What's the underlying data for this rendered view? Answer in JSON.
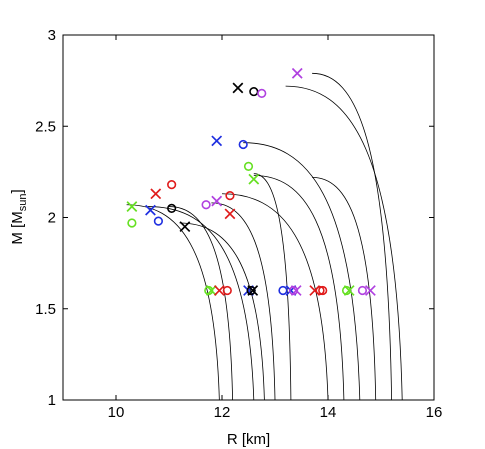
{
  "chart_data": {
    "type": "scatter",
    "xlabel": "R [km]",
    "ylabel": {
      "base": "M [M",
      "sub": "sun",
      "close": "]"
    },
    "xlim": [
      9,
      16
    ],
    "ylim": [
      1,
      3
    ],
    "xticks": [
      10,
      12,
      14,
      16
    ],
    "yticks": [
      1,
      1.5,
      2,
      2.5,
      3
    ],
    "grid": false,
    "legend": "none",
    "colors": {
      "black": "#000000",
      "blue": "#1f2fe0",
      "red": "#e01b1b",
      "green": "#66e022",
      "violet": "#b041e0",
      "curve": "#000000"
    },
    "curves": [
      {
        "r_end": 11.95,
        "r_max": 10.2,
        "m_max": 2.07
      },
      {
        "r_end": 12.6,
        "r_max": 10.6,
        "m_max": 2.06
      },
      {
        "r_end": 12.8,
        "r_max": 11.2,
        "m_max": 1.97
      },
      {
        "r_end": 12.2,
        "r_max": 11.0,
        "m_max": 2.06
      },
      {
        "r_end": 13.0,
        "r_max": 11.8,
        "m_max": 2.08
      },
      {
        "r_end": 13.3,
        "r_max": 12.6,
        "m_max": 2.24
      },
      {
        "r_end": 14.0,
        "r_max": 12.0,
        "m_max": 2.13
      },
      {
        "r_end": 14.3,
        "r_max": 12.6,
        "m_max": 2.23
      },
      {
        "r_end": 14.6,
        "r_max": 12.4,
        "m_max": 2.41
      },
      {
        "r_end": 15.4,
        "r_max": 13.2,
        "m_max": 2.72
      },
      {
        "r_end": 15.2,
        "r_max": 13.7,
        "m_max": 2.79
      },
      {
        "r_end": 14.9,
        "r_max": 13.7,
        "m_max": 2.22
      }
    ],
    "points": [
      {
        "marker": "x",
        "color": "black",
        "x": 12.3,
        "y": 2.71
      },
      {
        "marker": "o",
        "color": "black",
        "x": 12.6,
        "y": 2.69
      },
      {
        "marker": "o",
        "color": "violet",
        "x": 12.75,
        "y": 2.68
      },
      {
        "marker": "x",
        "color": "violet",
        "x": 13.42,
        "y": 2.79
      },
      {
        "marker": "x",
        "color": "blue",
        "x": 11.9,
        "y": 2.42
      },
      {
        "marker": "o",
        "color": "blue",
        "x": 12.4,
        "y": 2.4
      },
      {
        "marker": "o",
        "color": "green",
        "x": 12.5,
        "y": 2.28
      },
      {
        "marker": "x",
        "color": "green",
        "x": 12.6,
        "y": 2.21
      },
      {
        "marker": "x",
        "color": "red",
        "x": 10.75,
        "y": 2.13
      },
      {
        "marker": "o",
        "color": "red",
        "x": 11.05,
        "y": 2.18
      },
      {
        "marker": "x",
        "color": "green",
        "x": 10.3,
        "y": 2.06
      },
      {
        "marker": "o",
        "color": "green",
        "x": 10.3,
        "y": 1.97
      },
      {
        "marker": "x",
        "color": "blue",
        "x": 10.65,
        "y": 2.04
      },
      {
        "marker": "o",
        "color": "blue",
        "x": 10.8,
        "y": 1.98
      },
      {
        "marker": "o",
        "color": "black",
        "x": 11.05,
        "y": 2.05
      },
      {
        "marker": "x",
        "color": "black",
        "x": 11.3,
        "y": 1.95
      },
      {
        "marker": "o",
        "color": "violet",
        "x": 11.7,
        "y": 2.07
      },
      {
        "marker": "x",
        "color": "violet",
        "x": 11.9,
        "y": 2.09
      },
      {
        "marker": "o",
        "color": "red",
        "x": 12.15,
        "y": 2.12
      },
      {
        "marker": "x",
        "color": "red",
        "x": 12.15,
        "y": 2.02
      },
      {
        "marker": "o",
        "color": "green",
        "x": 11.75,
        "y": 1.6
      },
      {
        "marker": "x",
        "color": "green",
        "x": 11.8,
        "y": 1.6
      },
      {
        "marker": "x",
        "color": "red",
        "x": 11.95,
        "y": 1.6
      },
      {
        "marker": "o",
        "color": "red",
        "x": 12.1,
        "y": 1.6
      },
      {
        "marker": "x",
        "color": "blue",
        "x": 12.5,
        "y": 1.6
      },
      {
        "marker": "o",
        "color": "blue",
        "x": 12.55,
        "y": 1.6
      },
      {
        "marker": "o",
        "color": "black",
        "x": 12.55,
        "y": 1.6
      },
      {
        "marker": "x",
        "color": "black",
        "x": 12.58,
        "y": 1.6
      },
      {
        "marker": "o",
        "color": "blue",
        "x": 13.15,
        "y": 1.6
      },
      {
        "marker": "x",
        "color": "blue",
        "x": 13.3,
        "y": 1.6
      },
      {
        "marker": "o",
        "color": "violet",
        "x": 13.35,
        "y": 1.6
      },
      {
        "marker": "x",
        "color": "violet",
        "x": 13.4,
        "y": 1.6
      },
      {
        "marker": "x",
        "color": "red",
        "x": 13.75,
        "y": 1.6
      },
      {
        "marker": "o",
        "color": "red",
        "x": 13.85,
        "y": 1.6
      },
      {
        "marker": "o",
        "color": "red",
        "x": 13.9,
        "y": 1.6
      },
      {
        "marker": "o",
        "color": "green",
        "x": 14.35,
        "y": 1.6
      },
      {
        "marker": "x",
        "color": "green",
        "x": 14.4,
        "y": 1.6
      },
      {
        "marker": "o",
        "color": "violet",
        "x": 14.65,
        "y": 1.6
      },
      {
        "marker": "x",
        "color": "violet",
        "x": 14.8,
        "y": 1.6
      }
    ]
  }
}
